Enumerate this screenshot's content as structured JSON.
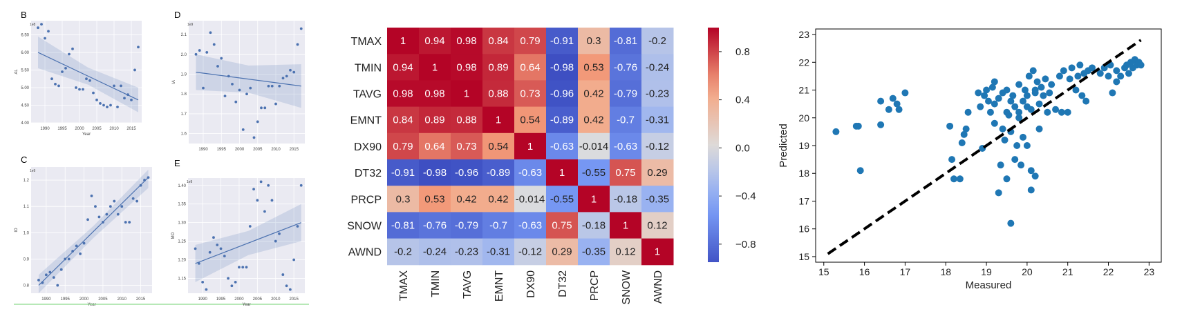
{
  "chart_data": [
    {
      "panel": "B",
      "type": "scatter",
      "regression": "linear",
      "ci_band": true,
      "scale_label": "1e8",
      "xlabel": "Year",
      "ylabel": "AL",
      "xlim": [
        1986,
        2018
      ],
      "ylim": [
        4.0,
        6.9
      ],
      "xticks": [
        1990,
        1995,
        2000,
        2005,
        2010,
        2015
      ],
      "yticks": [
        4.0,
        4.5,
        5.0,
        5.5,
        6.0,
        6.5
      ],
      "x": [
        1988,
        1989,
        1990,
        1991,
        1992,
        1993,
        1994,
        1995,
        1996,
        1997,
        1998,
        1999,
        2000,
        2001,
        2002,
        2003,
        2004,
        2005,
        2006,
        2007,
        2008,
        2009,
        2010,
        2011,
        2012,
        2013,
        2014,
        2015,
        2016,
        2017
      ],
      "y": [
        6.7,
        6.8,
        6.4,
        6.6,
        5.25,
        5.1,
        5.05,
        5.45,
        5.55,
        5.95,
        6.1,
        5.0,
        4.95,
        4.95,
        5.25,
        5.2,
        4.85,
        4.65,
        4.55,
        4.5,
        4.45,
        4.5,
        5.05,
        4.45,
        5.05,
        4.7,
        4.8,
        4.65,
        5.5,
        6.15
      ],
      "fit": [
        6.0,
        4.65
      ],
      "band_upper": [
        6.45,
        5.0
      ],
      "band_lower": [
        5.55,
        4.3
      ]
    },
    {
      "panel": "D",
      "type": "scatter",
      "regression": "linear",
      "ci_band": true,
      "scale_label": "1e9",
      "xlabel": "",
      "ylabel": "IA",
      "xlim": [
        1986,
        2018
      ],
      "ylim": [
        1.55,
        2.17
      ],
      "xticks": [
        1990,
        1995,
        2000,
        2005,
        2010,
        2015
      ],
      "yticks": [
        1.6,
        1.7,
        1.8,
        1.9,
        2.0,
        2.1
      ],
      "x": [
        1988,
        1989,
        1990,
        1991,
        1992,
        1993,
        1994,
        1995,
        1996,
        1997,
        1998,
        1999,
        2000,
        2001,
        2002,
        2003,
        2004,
        2005,
        2006,
        2007,
        2008,
        2009,
        2010,
        2011,
        2012,
        2013,
        2014,
        2015,
        2016,
        2017
      ],
      "y": [
        2.0,
        2.02,
        1.83,
        2.01,
        2.11,
        2.05,
        1.94,
        1.98,
        1.79,
        1.89,
        1.85,
        1.76,
        1.82,
        1.62,
        1.8,
        1.83,
        1.58,
        1.66,
        1.73,
        1.73,
        1.84,
        1.84,
        1.75,
        1.84,
        1.88,
        1.89,
        1.92,
        1.91,
        2.05,
        2.13
      ],
      "fit": [
        1.91,
        1.84
      ],
      "band_upper": [
        2.0,
        1.95
      ],
      "band_lower": [
        1.82,
        1.73
      ]
    },
    {
      "panel": "C",
      "type": "scatter",
      "regression": "linear",
      "ci_band": true,
      "scale_label": "1e9",
      "xlabel": "Year",
      "ylabel": "IO",
      "xlim": [
        1986,
        2018
      ],
      "ylim": [
        0.77,
        1.25
      ],
      "xticks": [
        1990,
        1995,
        2000,
        2005,
        2010,
        2015
      ],
      "yticks": [
        0.8,
        0.9,
        1.0,
        1.1,
        1.2
      ],
      "x": [
        1988,
        1989,
        1990,
        1991,
        1992,
        1993,
        1994,
        1995,
        1996,
        1997,
        1998,
        1999,
        2000,
        2001,
        2002,
        2003,
        2004,
        2005,
        2006,
        2007,
        2008,
        2009,
        2010,
        2011,
        2012,
        2013,
        2014,
        2015,
        2016,
        2017
      ],
      "y": [
        0.82,
        0.81,
        0.84,
        0.85,
        0.83,
        0.8,
        0.86,
        0.9,
        0.9,
        0.93,
        0.95,
        0.92,
        0.96,
        1.05,
        1.14,
        1.1,
        1.06,
        1.04,
        1.07,
        1.1,
        1.12,
        1.07,
        1.1,
        1.04,
        1.04,
        1.13,
        1.12,
        1.18,
        1.2,
        1.21
      ],
      "fit": [
        0.8,
        1.21
      ],
      "band_upper": [
        0.84,
        1.24
      ],
      "band_lower": [
        0.77,
        1.17
      ]
    },
    {
      "panel": "E",
      "type": "scatter",
      "regression": "linear",
      "ci_band": true,
      "scale_label": "1e9",
      "xlabel": "Year",
      "ylabel": "MO",
      "xlim": [
        1986,
        2018
      ],
      "ylim": [
        1.11,
        1.42
      ],
      "xticks": [
        1990,
        1995,
        2000,
        2005,
        2010,
        2015
      ],
      "yticks": [
        1.15,
        1.2,
        1.25,
        1.3,
        1.35,
        1.4
      ],
      "x": [
        1988,
        1989,
        1990,
        1991,
        1992,
        1993,
        1994,
        1995,
        1996,
        1997,
        1998,
        1999,
        2000,
        2001,
        2002,
        2003,
        2004,
        2005,
        2006,
        2007,
        2008,
        2009,
        2010,
        2011,
        2012,
        2013,
        2014,
        2015,
        2016,
        2017
      ],
      "y": [
        1.23,
        1.19,
        1.14,
        1.12,
        1.22,
        1.26,
        1.24,
        1.23,
        1.21,
        1.15,
        1.13,
        1.14,
        1.18,
        1.18,
        1.18,
        1.29,
        1.39,
        1.36,
        1.41,
        1.33,
        1.4,
        1.36,
        1.25,
        1.27,
        1.16,
        1.13,
        1.12,
        1.2,
        1.29,
        1.4
      ],
      "fit": [
        1.19,
        1.3
      ],
      "band_upper": [
        1.24,
        1.35
      ],
      "band_lower": [
        1.14,
        1.25
      ]
    },
    {
      "type": "heatmap",
      "labels": [
        "TMAX",
        "TMIN",
        "TAVG",
        "EMNT",
        "DX90",
        "DT32",
        "PRCP",
        "SNOW",
        "AWND"
      ],
      "matrix": [
        [
          "1",
          "0.94",
          "0.98",
          "0.84",
          "0.79",
          "-0.91",
          "0.3",
          "-0.81",
          "-0.2"
        ],
        [
          "0.94",
          "1",
          "0.98",
          "0.89",
          "0.64",
          "-0.98",
          "0.53",
          "-0.76",
          "-0.24"
        ],
        [
          "0.98",
          "0.98",
          "1",
          "0.88",
          "0.73",
          "-0.96",
          "0.42",
          "-0.79",
          "-0.23"
        ],
        [
          "0.84",
          "0.89",
          "0.88",
          "1",
          "0.54",
          "-0.89",
          "0.42",
          "-0.7",
          "-0.31"
        ],
        [
          "0.79",
          "0.64",
          "0.73",
          "0.54",
          "1",
          "-0.63",
          "-0.014",
          "-0.63",
          "-0.12"
        ],
        [
          "-0.91",
          "-0.98",
          "-0.96",
          "-0.89",
          "-0.63",
          "1",
          "-0.55",
          "0.75",
          "0.29"
        ],
        [
          "0.3",
          "0.53",
          "0.42",
          "0.42",
          "-0.014",
          "-0.55",
          "1",
          "-0.18",
          "-0.35"
        ],
        [
          "-0.81",
          "-0.76",
          "-0.79",
          "-0.7",
          "-0.63",
          "0.75",
          "-0.18",
          "1",
          "0.12"
        ],
        [
          "-0.2",
          "-0.24",
          "-0.23",
          "-0.31",
          "-0.12",
          "0.29",
          "-0.35",
          "0.12",
          "1"
        ]
      ],
      "colorbar": {
        "min": -0.95,
        "max": 1.0,
        "ticks": [
          "0.8",
          "0.4",
          "0.0",
          "−0.4",
          "−0.8"
        ],
        "tick_values": [
          0.8,
          0.4,
          0.0,
          -0.4,
          -0.8
        ],
        "colormap": "coolwarm"
      }
    },
    {
      "type": "scatter",
      "xlabel": "Measured",
      "ylabel": "Predicted",
      "xlim": [
        14.8,
        23.3
      ],
      "ylim": [
        14.8,
        23.2
      ],
      "xticks": [
        15,
        16,
        17,
        18,
        19,
        20,
        21,
        22,
        23
      ],
      "yticks": [
        15,
        16,
        17,
        18,
        19,
        20,
        21,
        22,
        23
      ],
      "reference_line": {
        "from": [
          15.1,
          15.1
        ],
        "to": [
          22.8,
          22.8
        ],
        "style": "dashed",
        "color": "#000000"
      },
      "marker_color": "#1f77b4",
      "points": [
        [
          15.3,
          19.5
        ],
        [
          15.8,
          19.7
        ],
        [
          15.85,
          19.7
        ],
        [
          15.9,
          18.1
        ],
        [
          16.4,
          20.6
        ],
        [
          16.4,
          19.75
        ],
        [
          16.6,
          20.3
        ],
        [
          16.7,
          20.7
        ],
        [
          16.8,
          20.5
        ],
        [
          16.85,
          20.3
        ],
        [
          17.0,
          20.9
        ],
        [
          18.1,
          19.7
        ],
        [
          18.15,
          18.5
        ],
        [
          18.2,
          17.8
        ],
        [
          18.35,
          17.8
        ],
        [
          18.4,
          19.1
        ],
        [
          18.45,
          19.4
        ],
        [
          18.5,
          19.6
        ],
        [
          18.55,
          20.2
        ],
        [
          18.8,
          20.9
        ],
        [
          18.85,
          20.4
        ],
        [
          18.9,
          18.9
        ],
        [
          18.95,
          20.8
        ],
        [
          19.0,
          21.0
        ],
        [
          19.05,
          20.6
        ],
        [
          19.1,
          20.2
        ],
        [
          19.15,
          21.1
        ],
        [
          19.2,
          21.3
        ],
        [
          19.2,
          19.8
        ],
        [
          19.3,
          17.3
        ],
        [
          19.3,
          20.7
        ],
        [
          19.35,
          18.3
        ],
        [
          19.4,
          20.9
        ],
        [
          19.45,
          19.2
        ],
        [
          19.5,
          17.8
        ],
        [
          19.5,
          21.0
        ],
        [
          19.55,
          20.1
        ],
        [
          19.6,
          16.2
        ],
        [
          19.6,
          19.5
        ],
        [
          19.65,
          20.8
        ],
        [
          19.7,
          20.4
        ],
        [
          19.7,
          18.5
        ],
        [
          19.75,
          19.0
        ],
        [
          19.8,
          21.2
        ],
        [
          19.8,
          20.0
        ],
        [
          19.85,
          18.3
        ],
        [
          19.9,
          20.6
        ],
        [
          19.9,
          19.3
        ],
        [
          19.95,
          21.0
        ],
        [
          20.0,
          20.8
        ],
        [
          20.0,
          19.0
        ],
        [
          20.05,
          21.5
        ],
        [
          20.1,
          20.3
        ],
        [
          20.1,
          18.1
        ],
        [
          20.15,
          21.7
        ],
        [
          20.2,
          17.9
        ],
        [
          20.2,
          20.9
        ],
        [
          20.25,
          21.3
        ],
        [
          20.3,
          20.5
        ],
        [
          20.3,
          19.6
        ],
        [
          20.35,
          21.1
        ],
        [
          20.4,
          20.8
        ],
        [
          20.45,
          21.4
        ],
        [
          20.5,
          20.2
        ],
        [
          20.55,
          20.9
        ],
        [
          20.6,
          21.2
        ],
        [
          20.1,
          17.4
        ],
        [
          19.4,
          19.6
        ],
        [
          19.6,
          20.6
        ],
        [
          19.2,
          20.5
        ],
        [
          19.8,
          20.2
        ],
        [
          20.0,
          20.4
        ],
        [
          20.2,
          21.0
        ],
        [
          19.5,
          20.2
        ],
        [
          20.7,
          20.3
        ],
        [
          20.8,
          21.5
        ],
        [
          20.85,
          20.2
        ],
        [
          20.9,
          21.7
        ],
        [
          21.0,
          20.2
        ],
        [
          21.05,
          21.4
        ],
        [
          21.1,
          21.8
        ],
        [
          21.2,
          21.0
        ],
        [
          21.25,
          21.5
        ],
        [
          21.3,
          21.9
        ],
        [
          21.35,
          20.8
        ],
        [
          21.4,
          21.6
        ],
        [
          21.45,
          20.6
        ],
        [
          21.5,
          21.7
        ],
        [
          21.6,
          21.8
        ],
        [
          21.8,
          21.6
        ],
        [
          21.9,
          21.8
        ],
        [
          22.0,
          21.5
        ],
        [
          22.05,
          21.9
        ],
        [
          22.1,
          20.9
        ],
        [
          22.2,
          21.7
        ],
        [
          22.3,
          21.5
        ],
        [
          22.4,
          21.8
        ],
        [
          22.5,
          21.6
        ],
        [
          22.55,
          22.0
        ],
        [
          22.6,
          21.8
        ],
        [
          22.65,
          22.1
        ],
        [
          22.7,
          21.9
        ],
        [
          22.75,
          22.0
        ],
        [
          22.8,
          21.9
        ],
        [
          22.45,
          21.9
        ],
        [
          22.2,
          21.3
        ]
      ]
    }
  ]
}
